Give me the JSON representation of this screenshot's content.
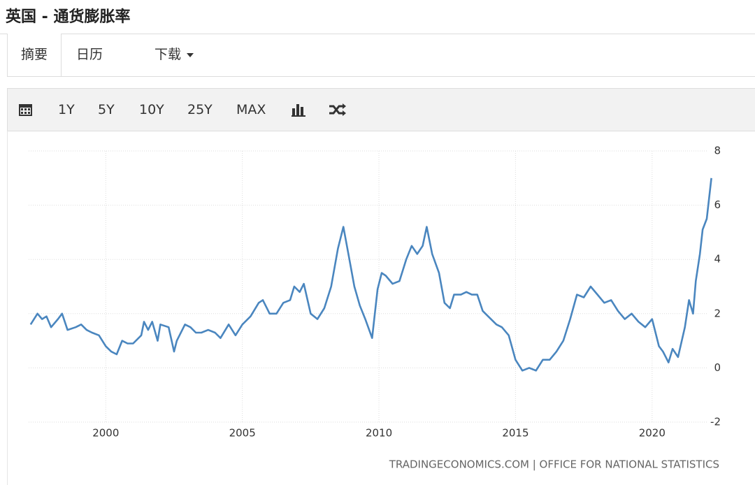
{
  "header": {
    "title": "英国 - 通货膨胀率"
  },
  "tabs": [
    "摘要",
    "日历",
    "下载"
  ],
  "toolbar": {
    "ranges": [
      "1Y",
      "5Y",
      "10Y",
      "25Y",
      "MAX"
    ]
  },
  "chart_data": {
    "type": "line",
    "source": "TRADINGECONOMICS.COM | OFFICE FOR NATIONAL STATISTICS",
    "x": [
      1997.25,
      1997.5,
      1997.67,
      1997.83,
      1998.0,
      1998.25,
      1998.4,
      1998.6,
      1998.9,
      1999.1,
      1999.3,
      1999.5,
      1999.75,
      2000.0,
      2000.2,
      2000.4,
      2000.6,
      2000.8,
      2001.0,
      2001.3,
      2001.4,
      2001.55,
      2001.7,
      2001.9,
      2002.0,
      2002.3,
      2002.5,
      2002.6,
      2002.9,
      2003.1,
      2003.3,
      2003.5,
      2003.75,
      2004.0,
      2004.2,
      2004.5,
      2004.75,
      2005.0,
      2005.3,
      2005.6,
      2005.75,
      2006.0,
      2006.25,
      2006.5,
      2006.75,
      2006.9,
      2007.1,
      2007.25,
      2007.5,
      2007.75,
      2008.0,
      2008.25,
      2008.5,
      2008.7,
      2008.9,
      2009.1,
      2009.3,
      2009.5,
      2009.75,
      2009.95,
      2010.1,
      2010.25,
      2010.5,
      2010.75,
      2011.0,
      2011.2,
      2011.4,
      2011.6,
      2011.75,
      2011.95,
      2012.2,
      2012.4,
      2012.6,
      2012.75,
      2013.0,
      2013.2,
      2013.4,
      2013.6,
      2013.8,
      2014.0,
      2014.3,
      2014.5,
      2014.75,
      2015.0,
      2015.25,
      2015.5,
      2015.75,
      2016.0,
      2016.25,
      2016.5,
      2016.75,
      2017.0,
      2017.25,
      2017.5,
      2017.75,
      2018.0,
      2018.25,
      2018.5,
      2018.75,
      2019.0,
      2019.25,
      2019.5,
      2019.75,
      2020.0,
      2020.25,
      2020.4,
      2020.6,
      2020.75,
      2020.95,
      2021.2,
      2021.35,
      2021.5,
      2021.6,
      2021.75,
      2021.85,
      2022.0,
      2022.17
    ],
    "series": [
      {
        "name": "UK inflation",
        "color": "#4a86bf",
        "values": [
          1.6,
          2.0,
          1.8,
          1.9,
          1.5,
          1.8,
          2.0,
          1.4,
          1.5,
          1.6,
          1.4,
          1.3,
          1.2,
          0.8,
          0.6,
          0.5,
          1.0,
          0.9,
          0.9,
          1.2,
          1.7,
          1.4,
          1.7,
          1.0,
          1.6,
          1.5,
          0.6,
          1.0,
          1.6,
          1.5,
          1.3,
          1.3,
          1.4,
          1.3,
          1.1,
          1.6,
          1.2,
          1.6,
          1.9,
          2.4,
          2.5,
          2.0,
          2.0,
          2.4,
          2.5,
          3.0,
          2.8,
          3.1,
          2.0,
          1.8,
          2.2,
          3.0,
          4.4,
          5.2,
          4.1,
          3.0,
          2.3,
          1.8,
          1.1,
          2.9,
          3.5,
          3.4,
          3.1,
          3.2,
          4.0,
          4.5,
          4.2,
          4.5,
          5.2,
          4.2,
          3.5,
          2.4,
          2.2,
          2.7,
          2.7,
          2.8,
          2.7,
          2.7,
          2.1,
          1.9,
          1.6,
          1.5,
          1.2,
          0.3,
          -0.1,
          0.0,
          -0.1,
          0.3,
          0.3,
          0.6,
          1.0,
          1.8,
          2.7,
          2.6,
          3.0,
          2.7,
          2.4,
          2.5,
          2.1,
          1.8,
          2.0,
          1.7,
          1.5,
          1.8,
          0.8,
          0.6,
          0.2,
          0.7,
          0.4,
          1.5,
          2.5,
          2.0,
          3.2,
          4.2,
          5.1,
          5.5,
          7.0
        ]
      }
    ],
    "xlim": [
      1996.41,
      2022.82
    ],
    "xticks": [
      2000,
      2005,
      2010,
      2015,
      2020
    ],
    "ylim": [
      -2,
      8
    ],
    "yticks": [
      -2,
      0,
      2,
      4,
      6,
      8
    ],
    "grid": true
  }
}
